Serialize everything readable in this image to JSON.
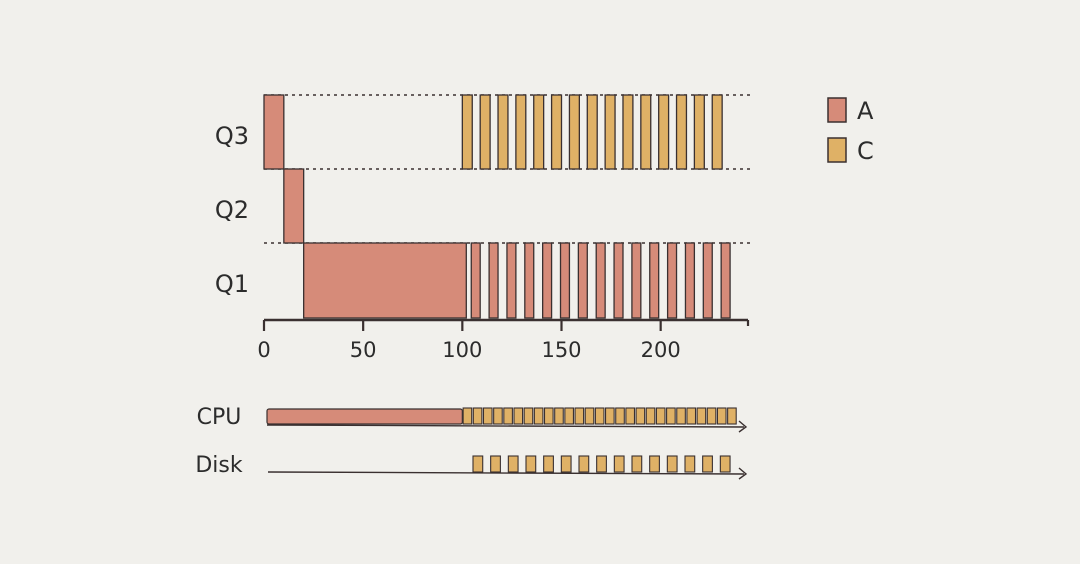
{
  "colors": {
    "background": "#f1f0ec",
    "A_fill": "#d68b79",
    "C_fill": "#dfb166",
    "stroke": "#3a3030",
    "dotted": "#3a3030"
  },
  "queues": {
    "q3_label": "Q3",
    "q2_label": "Q2",
    "q1_label": "Q1"
  },
  "legend": {
    "items": [
      {
        "label": "A",
        "color_key": "A_fill"
      },
      {
        "label": "C",
        "color_key": "C_fill"
      }
    ]
  },
  "time_axis": {
    "min": 0,
    "max": 240,
    "ticks": [
      0,
      50,
      100,
      150,
      200
    ],
    "tick_labels": [
      "0",
      "50",
      "100",
      "150",
      "200"
    ]
  },
  "schedule": {
    "A_blocks": [
      {
        "queue": "Q3",
        "start": 0,
        "end": 10
      },
      {
        "queue": "Q2",
        "start": 10,
        "end": 20
      },
      {
        "queue": "Q1",
        "start": 20,
        "end": 102
      },
      {
        "queue": "Q1",
        "start": 104.5,
        "end": 109
      },
      {
        "queue": "Q1",
        "start": 113.5,
        "end": 118
      },
      {
        "queue": "Q1",
        "start": 122.5,
        "end": 127
      },
      {
        "queue": "Q1",
        "start": 131.5,
        "end": 136
      },
      {
        "queue": "Q1",
        "start": 140.5,
        "end": 145
      },
      {
        "queue": "Q1",
        "start": 149.5,
        "end": 154
      },
      {
        "queue": "Q1",
        "start": 158.5,
        "end": 163
      },
      {
        "queue": "Q1",
        "start": 167.5,
        "end": 172
      },
      {
        "queue": "Q1",
        "start": 176.5,
        "end": 181
      },
      {
        "queue": "Q1",
        "start": 185.5,
        "end": 190
      },
      {
        "queue": "Q1",
        "start": 194.5,
        "end": 199
      },
      {
        "queue": "Q1",
        "start": 203.5,
        "end": 208
      },
      {
        "queue": "Q1",
        "start": 212.5,
        "end": 217
      },
      {
        "queue": "Q1",
        "start": 221.5,
        "end": 226
      },
      {
        "queue": "Q1",
        "start": 230.5,
        "end": 235
      }
    ],
    "C_blocks": [
      {
        "queue": "Q3",
        "start": 100,
        "end": 105
      },
      {
        "queue": "Q3",
        "start": 109,
        "end": 114
      },
      {
        "queue": "Q3",
        "start": 118,
        "end": 123
      },
      {
        "queue": "Q3",
        "start": 127,
        "end": 132
      },
      {
        "queue": "Q3",
        "start": 136,
        "end": 141
      },
      {
        "queue": "Q3",
        "start": 145,
        "end": 150
      },
      {
        "queue": "Q3",
        "start": 154,
        "end": 159
      },
      {
        "queue": "Q3",
        "start": 163,
        "end": 168
      },
      {
        "queue": "Q3",
        "start": 172,
        "end": 177
      },
      {
        "queue": "Q3",
        "start": 181,
        "end": 186
      },
      {
        "queue": "Q3",
        "start": 190,
        "end": 195
      },
      {
        "queue": "Q3",
        "start": 199,
        "end": 204
      },
      {
        "queue": "Q3",
        "start": 208,
        "end": 213
      },
      {
        "queue": "Q3",
        "start": 217,
        "end": 222
      },
      {
        "queue": "Q3",
        "start": 226,
        "end": 231
      }
    ]
  },
  "cpu": {
    "label": "CPU",
    "A_bar": {
      "start": 0,
      "end": 100
    },
    "C_slot_count": 27,
    "slots_start": 100,
    "slots_end": 240
  },
  "disk": {
    "label": "Disk",
    "slot_count": 15,
    "slots_start": 105,
    "slots_end": 240
  }
}
